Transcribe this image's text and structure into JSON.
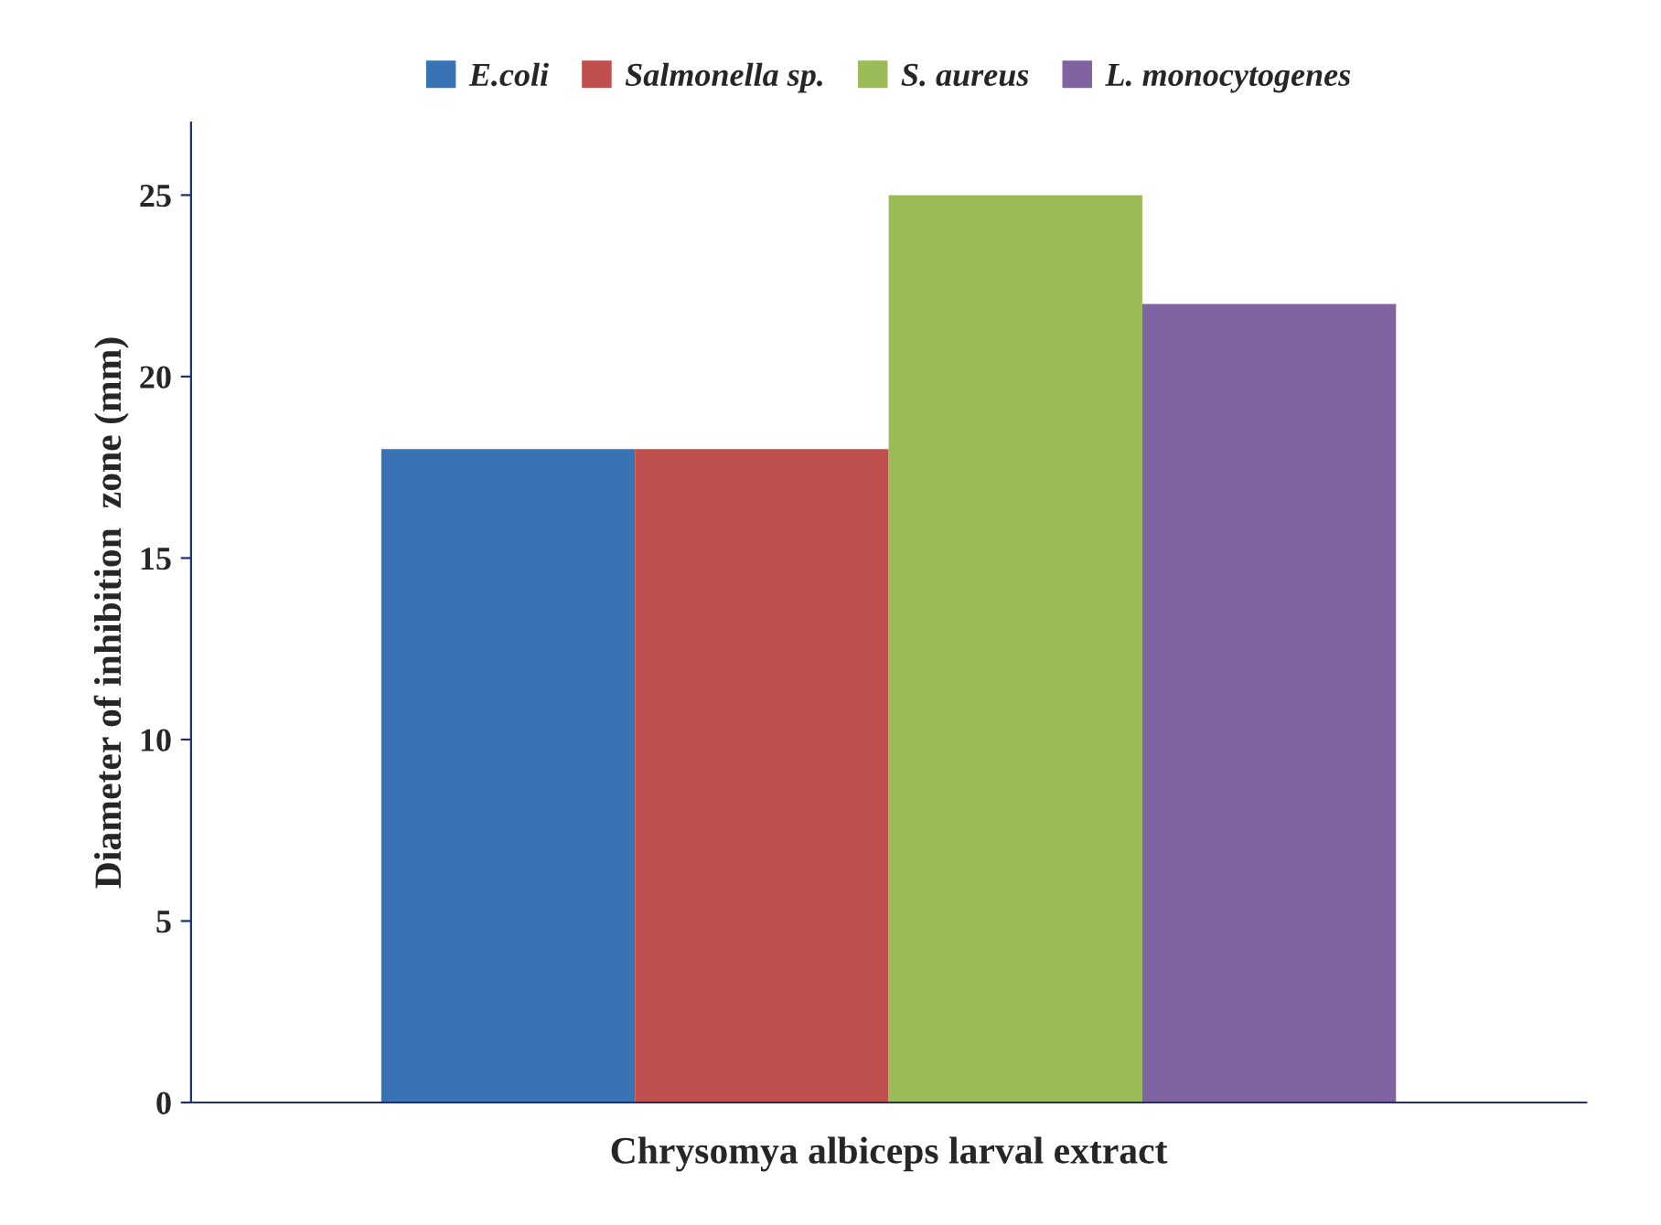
{
  "chart_data": {
    "type": "bar",
    "xlabel": "Chrysomya albiceps larval extract",
    "ylabel": "Diameter of inhibition  zone (mm)",
    "categories": [
      null
    ],
    "series": [
      {
        "name": "E.coli",
        "color": "#3a73b5",
        "values": [
          18
        ]
      },
      {
        "name": "Salmonella sp.",
        "color": "#c0504d",
        "values": [
          18
        ]
      },
      {
        "name": "S. aureus",
        "color": "#9bbb59",
        "values": [
          25
        ]
      },
      {
        "name": "L. monocytogenes",
        "color": "#8064a2",
        "values": [
          22
        ]
      }
    ],
    "ylim": [
      0,
      27
    ],
    "yticks": [
      0,
      5,
      10,
      15,
      20,
      25
    ],
    "grid": false,
    "legend": "top"
  }
}
